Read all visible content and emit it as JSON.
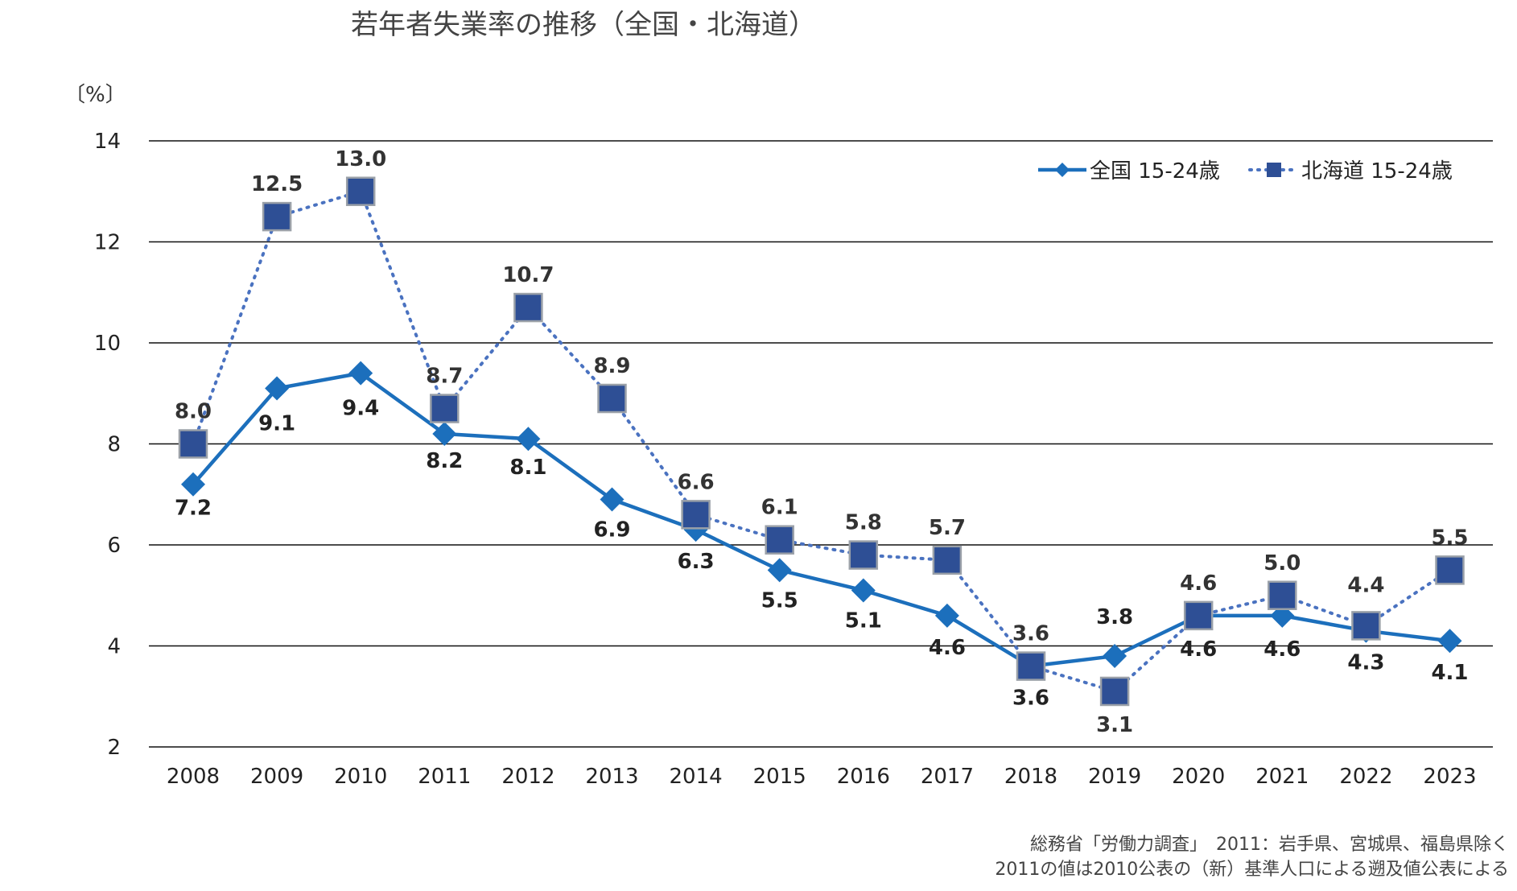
{
  "chart_data": {
    "type": "line",
    "title": "若年者失業率の推移（全国・北海道）",
    "unit_label": "〔%〕",
    "ylim": [
      2,
      14
    ],
    "yticks": [
      2,
      4,
      6,
      8,
      10,
      12,
      14
    ],
    "x": [
      "2008",
      "2009",
      "2010",
      "2011",
      "2012",
      "2013",
      "2014",
      "2015",
      "2016",
      "2017",
      "2018",
      "2019",
      "2020",
      "2021",
      "2022",
      "2023"
    ],
    "grid": true,
    "legend_position": "top-right",
    "series": [
      {
        "name": "全国 15-24歳",
        "color": "#1c6fbc",
        "line_style": "solid",
        "marker": "diamond",
        "values": [
          7.2,
          9.1,
          9.4,
          8.2,
          8.1,
          6.9,
          6.3,
          5.5,
          5.1,
          4.6,
          3.6,
          3.8,
          4.6,
          4.6,
          4.3,
          4.1
        ],
        "labels": [
          "7.2",
          "9.1",
          "9.4",
          "8.2",
          "8.1",
          "6.9",
          "6.3",
          "5.5",
          "5.1",
          "4.6",
          "3.6",
          "3.8",
          "4.6",
          "4.6",
          "4.3",
          "4.1"
        ]
      },
      {
        "name": "北海道 15-24歳",
        "color": "#4a72c0",
        "marker_color": "#2e4f95",
        "line_style": "dotted",
        "marker": "square",
        "values": [
          8.0,
          12.5,
          13.0,
          8.7,
          10.7,
          8.9,
          6.6,
          6.1,
          5.8,
          5.7,
          3.6,
          3.1,
          4.6,
          5.0,
          4.4,
          5.5
        ],
        "labels": [
          "8.0",
          "12.5",
          "13.0",
          "8.7",
          "10.7",
          "8.9",
          "6.6",
          "6.1",
          "5.8",
          "5.7",
          "3.6",
          "3.1",
          "4.6",
          "5.0",
          "4.4",
          "5.5"
        ]
      }
    ],
    "notes": [
      "総務省「労働力調査」　2011：岩手県、宮城県、福島県除く",
      "2011の値は2010公表の（新）基準人口による遡及値公表による"
    ]
  }
}
